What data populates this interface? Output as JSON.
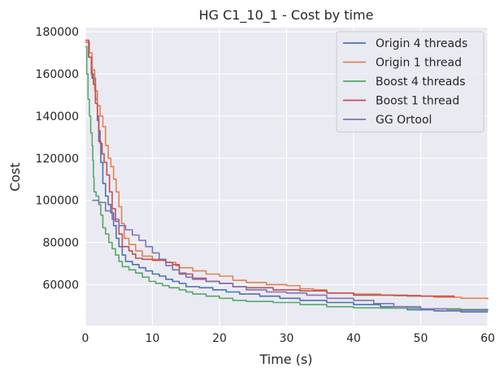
{
  "chart_data": {
    "type": "line",
    "title": "HG C1_10_1 - Cost by time",
    "xlabel": "Time (s)",
    "ylabel": "Cost",
    "xlim": [
      0,
      60
    ],
    "ylim": [
      40500,
      182000
    ],
    "xticks": [
      0,
      10,
      20,
      30,
      40,
      50,
      60
    ],
    "yticks": [
      60000,
      80000,
      100000,
      120000,
      140000,
      160000,
      180000
    ],
    "grid": true,
    "legend_position": "top-right",
    "background": "#eaeaf2",
    "series": [
      {
        "name": "Origin 4 threads",
        "color": "#4c72b0",
        "points": [
          [
            0,
            175000
          ],
          [
            0.5,
            168000
          ],
          [
            1.0,
            158000
          ],
          [
            1.5,
            148000
          ],
          [
            1.8,
            138000
          ],
          [
            2.0,
            128000
          ],
          [
            2.3,
            118000
          ],
          [
            2.6,
            108000
          ],
          [
            3.0,
            102000
          ],
          [
            3.4,
            98000
          ],
          [
            3.8,
            94000
          ],
          [
            4.2,
            88000
          ],
          [
            4.6,
            82000
          ],
          [
            5.0,
            78000
          ],
          [
            5.5,
            74000
          ],
          [
            6.0,
            71000
          ],
          [
            7.0,
            69500
          ],
          [
            8.0,
            68000
          ],
          [
            9.0,
            66500
          ],
          [
            10.0,
            65000
          ],
          [
            11.0,
            64000
          ],
          [
            12.0,
            62500
          ],
          [
            13.0,
            61500
          ],
          [
            14.0,
            60500
          ],
          [
            15.0,
            59000
          ],
          [
            17.0,
            58500
          ],
          [
            19.0,
            57500
          ],
          [
            21.0,
            56500
          ],
          [
            23.0,
            55500
          ],
          [
            26.0,
            54500
          ],
          [
            29.0,
            53500
          ],
          [
            32.0,
            52500
          ],
          [
            36.0,
            51500
          ],
          [
            40.0,
            50500
          ],
          [
            44.0,
            49500
          ],
          [
            48.0,
            48000
          ],
          [
            52.0,
            47500
          ],
          [
            56.0,
            47000
          ],
          [
            60.0,
            47000
          ]
        ]
      },
      {
        "name": "Origin 1 thread",
        "color": "#dd8452",
        "points": [
          [
            0,
            175000
          ],
          [
            0.6,
            170000
          ],
          [
            1.0,
            162000
          ],
          [
            1.4,
            152000
          ],
          [
            1.8,
            145000
          ],
          [
            2.2,
            140000
          ],
          [
            2.6,
            135000
          ],
          [
            3.0,
            126000
          ],
          [
            3.4,
            120000
          ],
          [
            3.8,
            116000
          ],
          [
            4.2,
            110000
          ],
          [
            4.6,
            104000
          ],
          [
            5.0,
            97000
          ],
          [
            5.4,
            89000
          ],
          [
            5.8,
            82000
          ],
          [
            6.5,
            79000
          ],
          [
            7.5,
            76000
          ],
          [
            8.5,
            73500
          ],
          [
            10.0,
            72000
          ],
          [
            12.0,
            70500
          ],
          [
            13.5,
            69000
          ],
          [
            14.0,
            68000
          ],
          [
            16.0,
            66500
          ],
          [
            18.0,
            65000
          ],
          [
            20.0,
            64000
          ],
          [
            22.0,
            62000
          ],
          [
            24.0,
            61000
          ],
          [
            27.0,
            60000
          ],
          [
            30.0,
            59500
          ],
          [
            32.0,
            58000
          ],
          [
            34.0,
            57500
          ],
          [
            36.0,
            56000
          ],
          [
            40.0,
            55500
          ],
          [
            44.0,
            55000
          ],
          [
            48.0,
            54500
          ],
          [
            52.0,
            54000
          ],
          [
            56.0,
            53500
          ],
          [
            60.0,
            53000
          ]
        ]
      },
      {
        "name": "Boost 4 threads",
        "color": "#55a868",
        "points": [
          [
            0,
            173000
          ],
          [
            0.2,
            160000
          ],
          [
            0.4,
            148000
          ],
          [
            0.6,
            140000
          ],
          [
            0.8,
            132000
          ],
          [
            1.0,
            126000
          ],
          [
            1.1,
            119000
          ],
          [
            1.2,
            111000
          ],
          [
            1.3,
            104000
          ],
          [
            1.6,
            102000
          ],
          [
            2.0,
            98000
          ],
          [
            2.3,
            93000
          ],
          [
            2.6,
            87000
          ],
          [
            3.0,
            84000
          ],
          [
            3.5,
            80000
          ],
          [
            4.0,
            77000
          ],
          [
            4.5,
            74000
          ],
          [
            5.0,
            71000
          ],
          [
            5.5,
            68500
          ],
          [
            6.5,
            67000
          ],
          [
            7.5,
            65500
          ],
          [
            8.5,
            63500
          ],
          [
            9.5,
            61500
          ],
          [
            10.5,
            60500
          ],
          [
            11.5,
            59500
          ],
          [
            12.5,
            58500
          ],
          [
            14.0,
            57500
          ],
          [
            15.0,
            56500
          ],
          [
            16.0,
            55500
          ],
          [
            18.0,
            54500
          ],
          [
            20.0,
            53500
          ],
          [
            22.0,
            52500
          ],
          [
            24.0,
            52000
          ],
          [
            28.0,
            51500
          ],
          [
            32.0,
            50500
          ],
          [
            36.0,
            49500
          ],
          [
            40.0,
            49000
          ],
          [
            44.0,
            48800
          ],
          [
            50.0,
            48500
          ],
          [
            56.0,
            48200
          ],
          [
            60.0,
            48000
          ]
        ]
      },
      {
        "name": "Boost 1 thread",
        "color": "#c44e52",
        "points": [
          [
            0,
            176000
          ],
          [
            0.5,
            168000
          ],
          [
            0.9,
            160000
          ],
          [
            1.2,
            155000
          ],
          [
            1.5,
            146000
          ],
          [
            1.8,
            140000
          ],
          [
            2.0,
            133000
          ],
          [
            2.2,
            127000
          ],
          [
            2.5,
            122000
          ],
          [
            2.8,
            118000
          ],
          [
            3.2,
            112000
          ],
          [
            3.6,
            104000
          ],
          [
            4.0,
            96000
          ],
          [
            4.5,
            90000
          ],
          [
            5.0,
            84000
          ],
          [
            5.5,
            78000
          ],
          [
            6.5,
            76000
          ],
          [
            7.0,
            74500
          ],
          [
            7.5,
            72500
          ],
          [
            8.5,
            72000
          ],
          [
            10.0,
            71500
          ],
          [
            12.0,
            70500
          ],
          [
            13.0,
            69500
          ],
          [
            14.0,
            65000
          ],
          [
            16.0,
            63000
          ],
          [
            18.0,
            61500
          ],
          [
            20.0,
            60500
          ],
          [
            22.0,
            59000
          ],
          [
            24.0,
            58500
          ],
          [
            28.0,
            57500
          ],
          [
            32.0,
            57000
          ],
          [
            36.0,
            56000
          ],
          [
            40.0,
            55000
          ],
          [
            46.0,
            54800
          ],
          [
            50.0,
            54500
          ],
          [
            55.0,
            54200
          ]
        ]
      },
      {
        "name": "GG Ortool",
        "color": "#8172b3",
        "points": [
          [
            1.0,
            100000
          ],
          [
            2.0,
            99000
          ],
          [
            3.0,
            95000
          ],
          [
            4.0,
            91000
          ],
          [
            5.0,
            88000
          ],
          [
            6.0,
            86000
          ],
          [
            7.0,
            83500
          ],
          [
            8.0,
            81000
          ],
          [
            9.0,
            78000
          ],
          [
            10.0,
            75000
          ],
          [
            11.0,
            72000
          ],
          [
            12.0,
            69000
          ],
          [
            13.0,
            67000
          ],
          [
            14.0,
            65500
          ],
          [
            15.0,
            63500
          ],
          [
            16.0,
            62500
          ],
          [
            18.0,
            61500
          ],
          [
            20.0,
            60500
          ],
          [
            22.0,
            59000
          ],
          [
            24.0,
            57500
          ],
          [
            27.0,
            56500
          ],
          [
            30.0,
            56000
          ],
          [
            33.0,
            55000
          ],
          [
            36.0,
            53500
          ],
          [
            40.0,
            52500
          ],
          [
            43.0,
            51000
          ],
          [
            46.0,
            49500
          ],
          [
            50.0,
            48500
          ],
          [
            54.0,
            47800
          ],
          [
            60.0,
            47500
          ]
        ]
      }
    ]
  }
}
